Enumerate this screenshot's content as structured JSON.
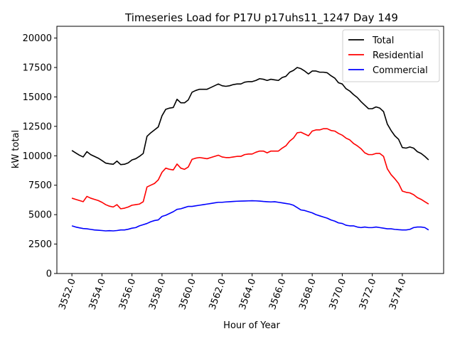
{
  "chart_data": {
    "type": "line",
    "title": "Timeseries Load for P17U p17uhs11_1247  Day 149",
    "xlabel": "Hour of Year",
    "ylabel": "kW total",
    "xlim": [
      3551.0,
      3576.75
    ],
    "ylim": [
      0,
      21000
    ],
    "xticks": [
      3552,
      3554,
      3556,
      3558,
      3560,
      3562,
      3564,
      3566,
      3568,
      3570,
      3572,
      3574
    ],
    "xtick_labels": [
      "3552.0",
      "3554.0",
      "3556.0",
      "3558.0",
      "3560.0",
      "3562.0",
      "3564.0",
      "3566.0",
      "3568.0",
      "3570.0",
      "3572.0",
      "3574.0"
    ],
    "yticks": [
      0,
      2500,
      5000,
      7500,
      10000,
      12500,
      15000,
      17500,
      20000
    ],
    "ytick_labels": [
      "0",
      "2500",
      "5000",
      "7500",
      "10000",
      "12500",
      "15000",
      "17500",
      "20000"
    ],
    "legend_position": "top-right",
    "x": [
      3552.0,
      3552.25,
      3552.5,
      3552.75,
      3553.0,
      3553.25,
      3553.5,
      3553.75,
      3554.0,
      3554.25,
      3554.5,
      3554.75,
      3555.0,
      3555.25,
      3555.5,
      3555.75,
      3556.0,
      3556.25,
      3556.5,
      3556.75,
      3557.0,
      3557.25,
      3557.5,
      3557.75,
      3558.0,
      3558.25,
      3558.5,
      3558.75,
      3559.0,
      3559.25,
      3559.5,
      3559.75,
      3560.0,
      3560.25,
      3560.5,
      3560.75,
      3561.0,
      3561.25,
      3561.5,
      3561.75,
      3562.0,
      3562.25,
      3562.5,
      3562.75,
      3563.0,
      3563.25,
      3563.5,
      3563.75,
      3564.0,
      3564.25,
      3564.5,
      3564.75,
      3565.0,
      3565.25,
      3565.5,
      3565.75,
      3566.0,
      3566.25,
      3566.5,
      3566.75,
      3567.0,
      3567.25,
      3567.5,
      3567.75,
      3568.0,
      3568.25,
      3568.5,
      3568.75,
      3569.0,
      3569.25,
      3569.5,
      3569.75,
      3570.0,
      3570.25,
      3570.5,
      3570.75,
      3571.0,
      3571.25,
      3571.5,
      3571.75,
      3572.0,
      3572.25,
      3572.5,
      3572.75,
      3573.0,
      3573.25,
      3573.5,
      3573.75,
      3574.0,
      3574.25,
      3574.5,
      3574.75,
      3575.0,
      3575.25,
      3575.5,
      3575.75
    ],
    "series": [
      {
        "name": "Total",
        "color": "#000000",
        "values": [
          10450,
          10250,
          10050,
          9900,
          10350,
          10100,
          9950,
          9800,
          9600,
          9380,
          9320,
          9280,
          9550,
          9250,
          9280,
          9400,
          9650,
          9750,
          9950,
          10200,
          11650,
          11950,
          12200,
          12450,
          13400,
          13950,
          14050,
          14100,
          14800,
          14500,
          14500,
          14750,
          15400,
          15550,
          15650,
          15650,
          15650,
          15800,
          15950,
          16100,
          15950,
          15900,
          15950,
          16050,
          16100,
          16100,
          16250,
          16300,
          16300,
          16400,
          16550,
          16500,
          16400,
          16500,
          16450,
          16400,
          16650,
          16750,
          17100,
          17250,
          17500,
          17400,
          17200,
          16950,
          17200,
          17200,
          17100,
          17100,
          17050,
          16800,
          16600,
          16200,
          16100,
          15700,
          15500,
          15200,
          14950,
          14600,
          14300,
          14000,
          14000,
          14150,
          14050,
          13750,
          12700,
          12150,
          11700,
          11400,
          10700,
          10650,
          10750,
          10650,
          10350,
          10200,
          9950,
          9650
        ]
      },
      {
        "name": "Residential",
        "color": "#ff0000",
        "values": [
          6400,
          6300,
          6200,
          6100,
          6550,
          6400,
          6300,
          6200,
          6050,
          5850,
          5720,
          5650,
          5850,
          5500,
          5550,
          5650,
          5800,
          5850,
          5900,
          6100,
          7350,
          7500,
          7650,
          7950,
          8600,
          8950,
          8850,
          8800,
          9300,
          8950,
          8850,
          9050,
          9700,
          9800,
          9850,
          9800,
          9750,
          9850,
          9950,
          10050,
          9900,
          9850,
          9850,
          9900,
          9950,
          9950,
          10100,
          10150,
          10150,
          10300,
          10400,
          10400,
          10250,
          10400,
          10400,
          10400,
          10650,
          10850,
          11250,
          11500,
          11950,
          12000,
          11850,
          11700,
          12100,
          12200,
          12200,
          12300,
          12300,
          12150,
          12100,
          11900,
          11750,
          11500,
          11350,
          11050,
          10850,
          10600,
          10250,
          10100,
          10100,
          10200,
          10200,
          9950,
          8900,
          8400,
          8050,
          7650,
          7000,
          6900,
          6850,
          6700,
          6450,
          6300,
          6100,
          5900
        ]
      },
      {
        "name": "Commercial",
        "color": "#0000ff",
        "values": [
          4050,
          3950,
          3880,
          3820,
          3800,
          3750,
          3700,
          3680,
          3650,
          3620,
          3640,
          3620,
          3650,
          3700,
          3700,
          3760,
          3850,
          3900,
          4050,
          4150,
          4250,
          4400,
          4500,
          4550,
          4850,
          4950,
          5100,
          5250,
          5450,
          5500,
          5600,
          5700,
          5700,
          5750,
          5800,
          5850,
          5900,
          5950,
          6000,
          6050,
          6050,
          6080,
          6100,
          6120,
          6140,
          6150,
          6160,
          6170,
          6180,
          6170,
          6150,
          6120,
          6100,
          6080,
          6100,
          6050,
          6000,
          5950,
          5900,
          5800,
          5600,
          5400,
          5350,
          5250,
          5150,
          5000,
          4900,
          4800,
          4700,
          4550,
          4450,
          4300,
          4250,
          4100,
          4050,
          4050,
          3950,
          3900,
          3950,
          3900,
          3900,
          3950,
          3900,
          3850,
          3800,
          3800,
          3750,
          3720,
          3700,
          3700,
          3750,
          3900,
          3950,
          3950,
          3900,
          3700
        ]
      }
    ]
  }
}
